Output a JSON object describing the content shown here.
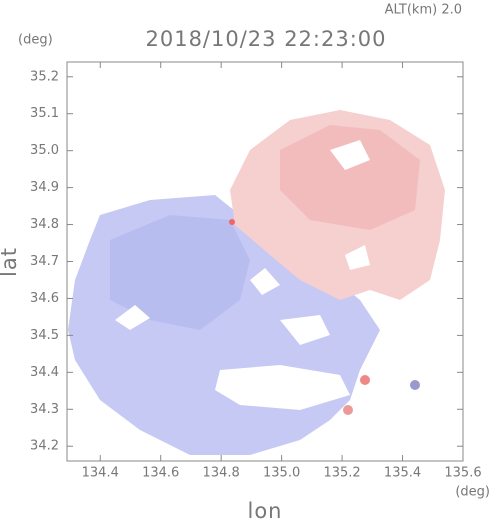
{
  "chart_data": {
    "type": "map",
    "title": "2018/10/23 22:23:00",
    "subtitle": "ALT(km) 2.0",
    "y_unit": "(deg)",
    "x_unit": "(deg)",
    "xlabel": "lon",
    "ylabel": "lat",
    "xlim": [
      134.29,
      135.6
    ],
    "xticks": [
      134.4,
      134.6,
      134.8,
      {
        "value": 135.0,
        "label": "135.0"
      },
      135.2,
      135.4,
      135.6
    ],
    "ylim": [
      34.16,
      35.24
    ],
    "yticks": [
      34.2,
      34.3,
      34.4,
      34.5,
      34.6,
      34.7,
      34.8,
      34.9,
      {
        "value": 35.0,
        "label": "35.0"
      },
      35.1,
      35.2
    ]
  }
}
